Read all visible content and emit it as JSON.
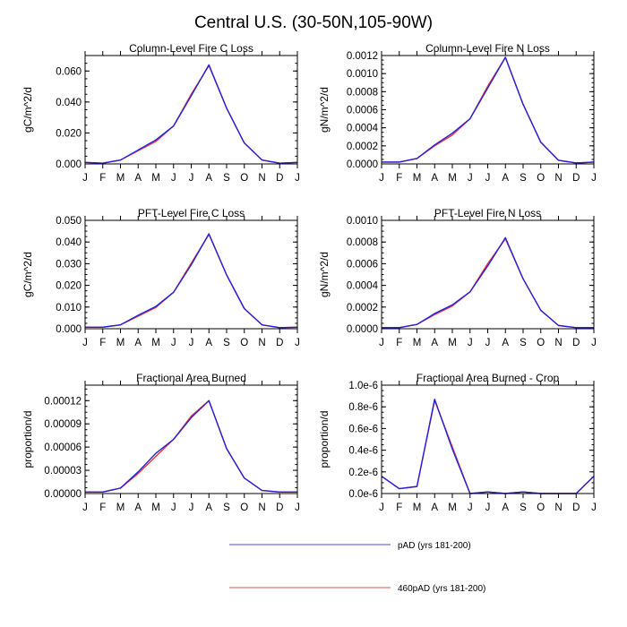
{
  "title": "Central U.S. (30-50N,105-90W)",
  "legend": {
    "items": [
      {
        "label": "pAD (yrs 181-200)",
        "color": "#4a4ae0"
      },
      {
        "label": "460pAD (yrs 181-200)",
        "color": "#e05050"
      }
    ]
  },
  "chart_data": [
    {
      "type": "line",
      "title": "Column-Level Fire C Loss",
      "ylabel": "gC/m^2/d",
      "categories": [
        "J",
        "F",
        "M",
        "A",
        "M",
        "J",
        "J",
        "A",
        "S",
        "O",
        "N",
        "D",
        "J"
      ],
      "ylim": [
        0,
        0.07
      ],
      "yticks": [
        0,
        0.02,
        0.04,
        0.06
      ],
      "ytick_labels": [
        "0.000",
        "0.020",
        "0.040",
        "0.060"
      ],
      "series": [
        {
          "name": "pAD (yrs 181-200)",
          "color": "#2222dd",
          "values": [
            0.001,
            0.0005,
            0.0025,
            0.009,
            0.0155,
            0.0245,
            0.044,
            0.064,
            0.036,
            0.0135,
            0.0025,
            0.0005,
            0.001
          ]
        },
        {
          "name": "460pAD (yrs 181-200)",
          "color": "#ee3333",
          "values": [
            0.001,
            0.0005,
            0.0025,
            0.0085,
            0.0145,
            0.0245,
            0.045,
            0.0635,
            0.036,
            0.0135,
            0.0025,
            0.0005,
            0.001
          ]
        }
      ]
    },
    {
      "type": "line",
      "title": "Column-Level Fire N Loss",
      "ylabel": "gN/m^2/d",
      "categories": [
        "J",
        "F",
        "M",
        "A",
        "M",
        "J",
        "J",
        "A",
        "S",
        "O",
        "N",
        "D",
        "J"
      ],
      "ylim": [
        0,
        0.0012
      ],
      "yticks": [
        0,
        0.0002,
        0.0004,
        0.0006,
        0.0008,
        0.001,
        0.0012
      ],
      "ytick_labels": [
        "0.0000",
        "0.0002",
        "0.0004",
        "0.0006",
        "0.0008",
        "0.0010",
        "0.0012"
      ],
      "series": [
        {
          "name": "pAD (yrs 181-200)",
          "color": "#2222dd",
          "values": [
            2e-05,
            2e-05,
            6e-05,
            0.00021,
            0.00034,
            0.0005,
            0.00084,
            0.00118,
            0.00066,
            0.00024,
            4e-05,
            1e-05,
            2e-05
          ]
        },
        {
          "name": "460pAD (yrs 181-200)",
          "color": "#ee3333",
          "values": [
            2e-05,
            2e-05,
            6e-05,
            0.0002,
            0.00032,
            0.0005,
            0.00086,
            0.00118,
            0.00066,
            0.00024,
            4e-05,
            1e-05,
            2e-05
          ]
        }
      ]
    },
    {
      "type": "line",
      "title": "PFT-Level Fire C Loss",
      "ylabel": "gC/m^2/d",
      "categories": [
        "J",
        "F",
        "M",
        "A",
        "M",
        "J",
        "J",
        "A",
        "S",
        "O",
        "N",
        "D",
        "J"
      ],
      "ylim": [
        0,
        0.05
      ],
      "yticks": [
        0,
        0.01,
        0.02,
        0.03,
        0.04,
        0.05
      ],
      "ytick_labels": [
        "0.000",
        "0.010",
        "0.020",
        "0.030",
        "0.040",
        "0.050"
      ],
      "series": [
        {
          "name": "pAD (yrs 181-200)",
          "color": "#2222dd",
          "values": [
            0.0007,
            0.0007,
            0.0018,
            0.0062,
            0.0103,
            0.0168,
            0.0295,
            0.0438,
            0.0248,
            0.0093,
            0.0018,
            0.0005,
            0.0007
          ]
        },
        {
          "name": "460pAD (yrs 181-200)",
          "color": "#ee3333",
          "values": [
            0.0007,
            0.0007,
            0.0018,
            0.0058,
            0.0098,
            0.0168,
            0.0302,
            0.0435,
            0.0248,
            0.0093,
            0.0018,
            0.0005,
            0.0007
          ]
        }
      ]
    },
    {
      "type": "line",
      "title": "PFT-Level Fire N Loss",
      "ylabel": "gN/m^2/d",
      "categories": [
        "J",
        "F",
        "M",
        "A",
        "M",
        "J",
        "J",
        "A",
        "S",
        "O",
        "N",
        "D",
        "J"
      ],
      "ylim": [
        0,
        0.001
      ],
      "yticks": [
        0,
        0.0002,
        0.0004,
        0.0006,
        0.0008,
        0.001
      ],
      "ytick_labels": [
        "0.0000",
        "0.0002",
        "0.0004",
        "0.0006",
        "0.0008",
        "0.0010"
      ],
      "series": [
        {
          "name": "pAD (yrs 181-200)",
          "color": "#2222dd",
          "values": [
            1e-05,
            1e-05,
            4e-05,
            0.00014,
            0.00022,
            0.00034,
            0.00058,
            0.00084,
            0.00046,
            0.00017,
            3e-05,
            1e-05,
            1e-05
          ]
        },
        {
          "name": "460pAD (yrs 181-200)",
          "color": "#ee3333",
          "values": [
            1e-05,
            1e-05,
            4e-05,
            0.00013,
            0.00021,
            0.00034,
            0.0006,
            0.00083,
            0.00046,
            0.00017,
            3e-05,
            1e-05,
            1e-05
          ]
        }
      ]
    },
    {
      "type": "line",
      "title": "Fractional Area Burned",
      "ylabel": "proportion/d",
      "categories": [
        "J",
        "F",
        "M",
        "A",
        "M",
        "J",
        "J",
        "A",
        "S",
        "O",
        "N",
        "D",
        "J"
      ],
      "ylim": [
        0,
        0.00014
      ],
      "yticks": [
        0,
        3e-05,
        6e-05,
        9e-05,
        0.00012
      ],
      "ytick_labels": [
        "0.00000",
        "0.00003",
        "0.00006",
        "0.00009",
        "0.00012"
      ],
      "series": [
        {
          "name": "pAD (yrs 181-200)",
          "color": "#2222dd",
          "values": [
            2e-06,
            2e-06,
            7e-06,
            2.8e-05,
            5.2e-05,
            7e-05,
            9.8e-05,
            0.00012,
            5.8e-05,
            2e-05,
            4e-06,
            2e-06,
            2e-06
          ]
        },
        {
          "name": "460pAD (yrs 181-200)",
          "color": "#ee3333",
          "values": [
            2e-06,
            2e-06,
            7e-06,
            2.6e-05,
            4.8e-05,
            7e-05,
            0.0001,
            0.00012,
            5.8e-05,
            2e-05,
            4e-06,
            2e-06,
            2e-06
          ]
        }
      ]
    },
    {
      "type": "line",
      "title": "Fractional Area Burned - Crop",
      "ylabel": "proportion/d",
      "categories": [
        "J",
        "F",
        "M",
        "A",
        "M",
        "J",
        "J",
        "A",
        "S",
        "O",
        "N",
        "D",
        "J"
      ],
      "ylim": [
        0,
        1e-06
      ],
      "yticks": [
        0,
        2e-07,
        4e-07,
        6e-07,
        8e-07,
        1e-06
      ],
      "ytick_labels": [
        "0.0e-6",
        "0.2e-6",
        "0.4e-6",
        "0.6e-6",
        "0.8e-6",
        "1.0e-6"
      ],
      "series": [
        {
          "name": "pAD (yrs 181-200)",
          "color": "#2222dd",
          "values": [
            1.6e-07,
            4.5e-08,
            6.5e-08,
            8.7e-07,
            4.1e-07,
            0,
            1.5e-08,
            0,
            1.5e-08,
            0,
            0,
            0,
            1.6e-07
          ]
        },
        {
          "name": "460pAD (yrs 181-200)",
          "color": "#ee3333",
          "values": [
            1.6e-07,
            4.5e-08,
            6.5e-08,
            8.6e-07,
            4.3e-07,
            0,
            1.5e-08,
            0,
            1.5e-08,
            0,
            0,
            0,
            1.6e-07
          ]
        }
      ]
    }
  ]
}
